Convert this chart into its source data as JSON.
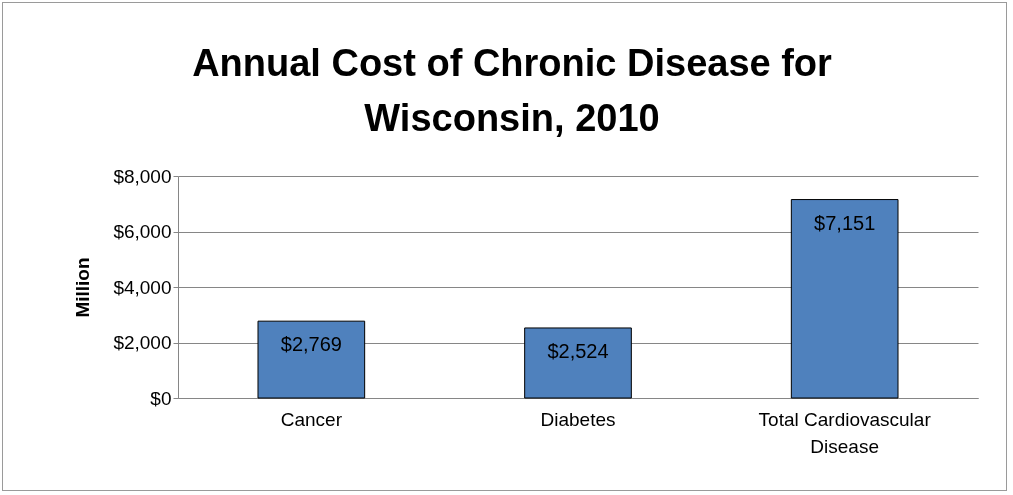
{
  "chart_data": {
    "type": "bar",
    "title": "Annual Cost of Chronic Disease for Wisconsin, 2010",
    "ylabel": "Million",
    "categories": [
      "Cancer",
      "Diabetes",
      "Total Cardiovascular Disease"
    ],
    "values": [
      2769,
      2524,
      7151
    ],
    "color": "#4f81bd",
    "value_labels": [
      "$2,769",
      "$2,524",
      "$7,151"
    ],
    "ylim": [
      0,
      8000
    ],
    "yticks": [
      {
        "value": 0,
        "label": "$0"
      },
      {
        "value": 2000,
        "label": "$2,000"
      },
      {
        "value": 4000,
        "label": "$4,000"
      },
      {
        "value": 6000,
        "label": "$6,000"
      },
      {
        "value": 8000,
        "label": "$8,000"
      }
    ],
    "grid": "y"
  }
}
